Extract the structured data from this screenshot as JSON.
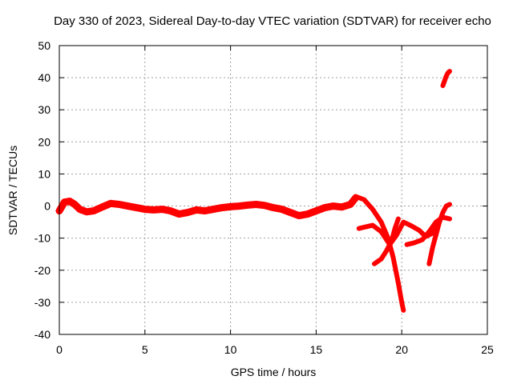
{
  "chart_data": {
    "type": "scatter",
    "title": "Day 330 of 2023, Sidereal Day-to-day VTEC variation (SDTVAR) for receiver echo",
    "xlabel": "GPS time / hours",
    "ylabel": "SDTVAR / TECUs",
    "xlim": [
      0,
      25
    ],
    "ylim": [
      -40,
      50
    ],
    "xticks": [
      0,
      5,
      10,
      15,
      20,
      25
    ],
    "yticks": [
      -40,
      -30,
      -20,
      -10,
      0,
      10,
      20,
      30,
      40,
      50
    ],
    "grid": true,
    "color": "#ff0000",
    "series": [
      {
        "name": "main band",
        "x": [
          0.0,
          0.3,
          0.6,
          0.9,
          1.2,
          1.6,
          2.0,
          2.5,
          3.0,
          3.5,
          4.0,
          4.5,
          5.0,
          5.5,
          6.0,
          6.5,
          7.0,
          7.5,
          8.0,
          8.5,
          9.0,
          9.5,
          10.0,
          10.5,
          11.0,
          11.5,
          12.0,
          12.5,
          13.0,
          13.5,
          14.0,
          14.5,
          15.0,
          15.5,
          16.0,
          16.5,
          17.0,
          17.3
        ],
        "y": [
          -1.5,
          1.2,
          1.5,
          0.5,
          -1.0,
          -1.8,
          -1.5,
          -0.3,
          0.8,
          0.5,
          0.0,
          -0.5,
          -1.0,
          -1.2,
          -1.0,
          -1.5,
          -2.5,
          -2.0,
          -1.2,
          -1.5,
          -1.0,
          -0.5,
          -0.2,
          0.0,
          0.3,
          0.5,
          0.2,
          -0.5,
          -1.0,
          -2.0,
          -3.0,
          -2.5,
          -1.5,
          -0.5,
          0.0,
          -0.3,
          0.5,
          2.5
        ]
      },
      {
        "name": "arc 1",
        "x": [
          17.3,
          17.8,
          18.3,
          18.8,
          19.2,
          19.5,
          19.8,
          20.0,
          20.1
        ],
        "y": [
          3.0,
          2.0,
          -1.0,
          -5.0,
          -10.0,
          -16.0,
          -24.0,
          -30.0,
          -32.5
        ]
      },
      {
        "name": "arc 2",
        "x": [
          17.5,
          17.9,
          18.3,
          18.8,
          19.3,
          19.7,
          20.1,
          20.5,
          21.0,
          21.4,
          21.8,
          22.1
        ],
        "y": [
          -7.0,
          -6.5,
          -6.0,
          -8.0,
          -12.0,
          -9.0,
          -5.0,
          -6.0,
          -7.5,
          -9.5,
          -8.5,
          -6.0
        ]
      },
      {
        "name": "arc 3",
        "x": [
          18.4,
          18.8,
          19.1,
          19.4,
          19.6,
          19.8
        ],
        "y": [
          -18.0,
          -16.5,
          -14.0,
          -11.0,
          -7.0,
          -4.0
        ]
      },
      {
        "name": "arc 4",
        "x": [
          20.3,
          20.7,
          21.2,
          21.6,
          22.0,
          22.4,
          22.8
        ],
        "y": [
          -12.0,
          -11.5,
          -10.5,
          -8.0,
          -5.0,
          -3.5,
          -4.0
        ]
      },
      {
        "name": "arc 5",
        "x": [
          21.6,
          21.8,
          22.0,
          22.2,
          22.4,
          22.6,
          22.8
        ],
        "y": [
          -18.0,
          -13.0,
          -9.0,
          -5.0,
          -2.0,
          0.0,
          0.5
        ]
      },
      {
        "name": "arc 6",
        "x": [
          22.4,
          22.5,
          22.6,
          22.7,
          22.8
        ],
        "y": [
          37.5,
          39.0,
          40.5,
          41.5,
          42.0
        ]
      }
    ]
  }
}
